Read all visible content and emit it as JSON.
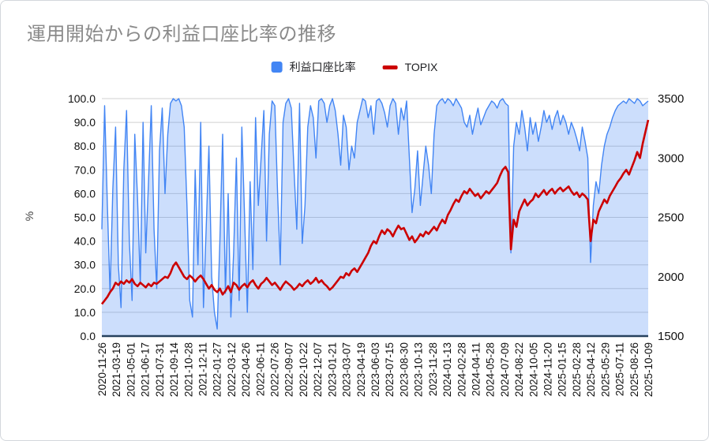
{
  "chart": {
    "legend": [
      {
        "label": "利益口座比率",
        "shape": "square",
        "color": "#4285f4"
      },
      {
        "label": "TOPIX",
        "shape": "dash",
        "color": "#cc0000"
      }
    ]
  },
  "chart_data": {
    "type": "area",
    "title": "運用開始からの利益口座比率の推移",
    "legend_position": "top",
    "grid": "horizontal",
    "grid_color": "#d0d0d0",
    "baseline_color": "#26415e",
    "left_axis": {
      "label": "%",
      "min": 0,
      "max": 100,
      "tick_labels": [
        "0.0",
        "10.0",
        "20.0",
        "30.0",
        "40.0",
        "50.0",
        "60.0",
        "70.0",
        "80.0",
        "90.0",
        "100.0"
      ]
    },
    "right_axis": {
      "min": 1500,
      "max": 3500,
      "tick_labels": [
        "1500",
        "2000",
        "2500",
        "3000",
        "3500"
      ]
    },
    "x_labels": [
      "2020-11-26",
      "2021-03-19",
      "2021-05-01",
      "2021-06-17",
      "2021-07-31",
      "2021-09-14",
      "2021-10-28",
      "2021-12-11",
      "2022-01-27",
      "2022-03-12",
      "2022-04-26",
      "2022-06-11",
      "2022-07-26",
      "2022-09-07",
      "2022-10-22",
      "2022-12-07",
      "2023-01-21",
      "2023-03-07",
      "2023-04-19",
      "2023-06-03",
      "2023-07-15",
      "2023-08-30",
      "2023-10-13",
      "2023-11-28",
      "2024-01-13",
      "2024-02-28",
      "2024-04-11",
      "2024-05-28",
      "2024-07-09",
      "2024-08-22",
      "2024-10-05",
      "2024-11-20",
      "2025-01-15",
      "2025-02-28",
      "2025-04-12",
      "2025-05-29",
      "2025-07-11",
      "2025-08-26",
      "2025-10-09"
    ],
    "series": [
      {
        "name": "利益口座比率",
        "axis": "left",
        "type": "area",
        "color": "#4285f4",
        "fill": "rgba(66,133,244,0.27)",
        "values": [
          45,
          97,
          55,
          18,
          62,
          88,
          30,
          12,
          70,
          95,
          40,
          15,
          85,
          58,
          22,
          90,
          35,
          65,
          97,
          45,
          20,
          78,
          96,
          60,
          85,
          98,
          100,
          99,
          100,
          97,
          88,
          55,
          15,
          8,
          70,
          30,
          90,
          12,
          45,
          80,
          25,
          10,
          3,
          40,
          85,
          18,
          60,
          8,
          35,
          75,
          15,
          88,
          50,
          10,
          65,
          28,
          92,
          55,
          75,
          95,
          40,
          85,
          99,
          97,
          60,
          30,
          90,
          98,
          100,
          96,
          70,
          45,
          98,
          39,
          55,
          88,
          97,
          92,
          75,
          99,
          100,
          98,
          90,
          97,
          100,
          95,
          85,
          72,
          93,
          88,
          70,
          80,
          75,
          90,
          95,
          100,
          99,
          92,
          97,
          85,
          99,
          100,
          98,
          94,
          88,
          97,
          100,
          98,
          85,
          96,
          91,
          99,
          75,
          52,
          62,
          78,
          55,
          68,
          80,
          72,
          60,
          85,
          97,
          99,
          100,
          98,
          100,
          99,
          97,
          100,
          98,
          96,
          90,
          88,
          93,
          85,
          91,
          96,
          89,
          92,
          95,
          97,
          99,
          98,
          96,
          99,
          100,
          98,
          97,
          35,
          80,
          90,
          85,
          95,
          88,
          78,
          92,
          85,
          90,
          82,
          88,
          95,
          90,
          93,
          87,
          92,
          95,
          89,
          93,
          90,
          85,
          90,
          87,
          83,
          78,
          88,
          82,
          75,
          31,
          55,
          65,
          60,
          72,
          80,
          85,
          88,
          92,
          95,
          97,
          98,
          99,
          98,
          100,
          99,
          98,
          100,
          99,
          97,
          98,
          99
        ]
      },
      {
        "name": "TOPIX",
        "axis": "right",
        "type": "line",
        "color": "#cc0000",
        "values": [
          1770,
          1800,
          1830,
          1870,
          1900,
          1950,
          1930,
          1960,
          1940,
          1970,
          1950,
          1980,
          1940,
          1920,
          1950,
          1930,
          1910,
          1940,
          1920,
          1950,
          1940,
          1960,
          1980,
          2000,
          1990,
          2030,
          2090,
          2120,
          2080,
          2040,
          2000,
          1980,
          2010,
          1990,
          1960,
          1990,
          2010,
          1980,
          1940,
          1900,
          1930,
          1890,
          1870,
          1900,
          1850,
          1880,
          1920,
          1870,
          1950,
          1930,
          1890,
          1920,
          1940,
          1910,
          1950,
          1970,
          1930,
          1900,
          1940,
          1960,
          1990,
          1960,
          1930,
          1950,
          1920,
          1890,
          1930,
          1960,
          1940,
          1920,
          1890,
          1910,
          1940,
          1920,
          1950,
          1970,
          1940,
          1960,
          1990,
          1950,
          1970,
          1940,
          1920,
          1890,
          1910,
          1940,
          1970,
          2000,
          1990,
          2030,
          2010,
          2050,
          2070,
          2040,
          2080,
          2120,
          2160,
          2200,
          2260,
          2300,
          2280,
          2340,
          2390,
          2360,
          2400,
          2380,
          2340,
          2390,
          2430,
          2400,
          2410,
          2360,
          2310,
          2340,
          2290,
          2320,
          2360,
          2340,
          2380,
          2360,
          2390,
          2420,
          2390,
          2440,
          2480,
          2450,
          2520,
          2560,
          2610,
          2650,
          2630,
          2680,
          2720,
          2700,
          2740,
          2710,
          2680,
          2700,
          2660,
          2690,
          2720,
          2700,
          2730,
          2760,
          2790,
          2850,
          2900,
          2925,
          2880,
          2230,
          2480,
          2420,
          2550,
          2600,
          2650,
          2600,
          2630,
          2650,
          2700,
          2670,
          2700,
          2730,
          2690,
          2720,
          2740,
          2700,
          2730,
          2750,
          2720,
          2740,
          2760,
          2720,
          2690,
          2710,
          2670,
          2700,
          2680,
          2650,
          2300,
          2480,
          2450,
          2550,
          2600,
          2650,
          2620,
          2680,
          2720,
          2760,
          2800,
          2830,
          2870,
          2900,
          2860,
          2920,
          2980,
          3050,
          3000,
          3120,
          3220,
          3320
        ]
      }
    ]
  }
}
